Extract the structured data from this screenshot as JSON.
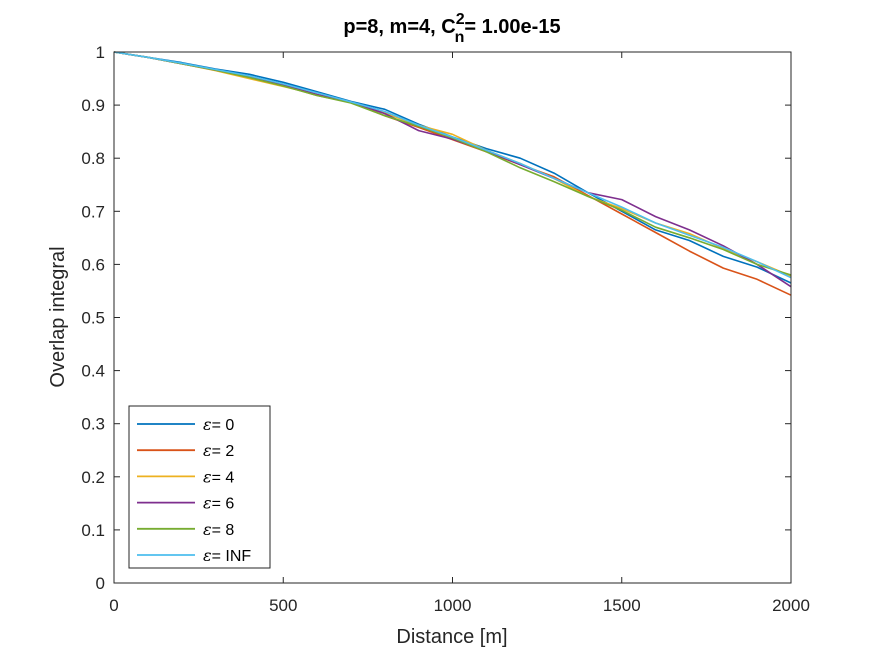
{
  "chart_data": {
    "type": "line",
    "title": {
      "prefix": "p=8, m=4, C",
      "sup": "2",
      "sub": "n",
      "suffix": "= 1.00e-15"
    },
    "xlabel": "Distance [m]",
    "ylabel": "Overlap integral",
    "xlim": [
      0,
      2000
    ],
    "ylim": [
      0,
      1
    ],
    "xticks": [
      0,
      500,
      1000,
      1500,
      2000
    ],
    "yticks": [
      0,
      0.1,
      0.2,
      0.3,
      0.4,
      0.5,
      0.6,
      0.7,
      0.8,
      0.9,
      1
    ],
    "grid": false,
    "legend_position": "bottom-left",
    "x": [
      0,
      100,
      200,
      300,
      400,
      500,
      600,
      700,
      800,
      900,
      1000,
      1100,
      1200,
      1300,
      1400,
      1500,
      1600,
      1700,
      1800,
      1900,
      2000
    ],
    "series": [
      {
        "name": "0",
        "legend_symbol": "ε",
        "legend_suffix": "= 0",
        "color": "#0072BD",
        "values": [
          1.0,
          0.99,
          0.98,
          0.968,
          0.958,
          0.943,
          0.925,
          0.907,
          0.892,
          0.864,
          0.84,
          0.818,
          0.8,
          0.772,
          0.735,
          0.7,
          0.665,
          0.645,
          0.615,
          0.595,
          0.565
        ]
      },
      {
        "name": "2",
        "legend_symbol": "ε",
        "legend_suffix": "= 2",
        "color": "#D95319",
        "values": [
          1.0,
          0.99,
          0.978,
          0.966,
          0.954,
          0.937,
          0.918,
          0.905,
          0.88,
          0.858,
          0.835,
          0.812,
          0.788,
          0.765,
          0.73,
          0.695,
          0.66,
          0.625,
          0.593,
          0.572,
          0.542
        ]
      },
      {
        "name": "4",
        "legend_symbol": "ε",
        "legend_suffix": "= 4",
        "color": "#EDB120",
        "values": [
          1.0,
          0.99,
          0.978,
          0.965,
          0.95,
          0.935,
          0.92,
          0.905,
          0.885,
          0.862,
          0.845,
          0.815,
          0.79,
          0.762,
          0.728,
          0.705,
          0.678,
          0.658,
          0.63,
          0.605,
          0.578
        ]
      },
      {
        "name": "6",
        "legend_symbol": "ε",
        "legend_suffix": "= 6",
        "color": "#7E2F8E",
        "values": [
          1.0,
          0.99,
          0.978,
          0.966,
          0.954,
          0.938,
          0.92,
          0.906,
          0.884,
          0.852,
          0.836,
          0.814,
          0.788,
          0.762,
          0.735,
          0.722,
          0.69,
          0.665,
          0.635,
          0.6,
          0.558
        ]
      },
      {
        "name": "8",
        "legend_symbol": "ε",
        "legend_suffix": "= 8",
        "color": "#77AC30",
        "values": [
          1.0,
          0.99,
          0.978,
          0.966,
          0.952,
          0.936,
          0.918,
          0.904,
          0.88,
          0.86,
          0.838,
          0.812,
          0.782,
          0.756,
          0.728,
          0.702,
          0.67,
          0.65,
          0.628,
          0.6,
          0.58
        ]
      },
      {
        "name": "INF",
        "legend_symbol": "ε",
        "legend_suffix": "= INF",
        "color": "#4DBEEE",
        "values": [
          1.0,
          0.99,
          0.979,
          0.967,
          0.955,
          0.94,
          0.923,
          0.906,
          0.888,
          0.862,
          0.84,
          0.815,
          0.79,
          0.762,
          0.735,
          0.708,
          0.678,
          0.655,
          0.632,
          0.605,
          0.575
        ]
      }
    ]
  }
}
